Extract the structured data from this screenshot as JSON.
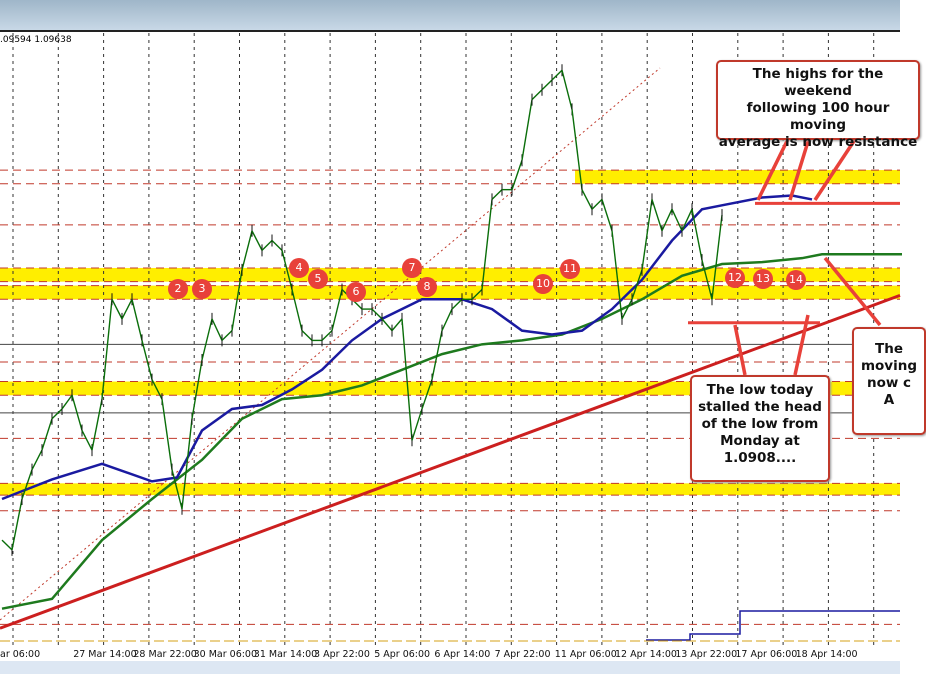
{
  "header": {
    "ohlc_text": ".09594 1.09638"
  },
  "chart_data": {
    "type": "line",
    "title": "",
    "ylim": [
      1.0746,
      1.1056
    ],
    "grid": true,
    "x_tick_labels": [
      "ar 06:00",
      "27 Mar 14:00",
      "28 Mar 22:00",
      "30 Mar 06:00",
      "31 Mar 14:00",
      "3 Apr 22:00",
      "5 Apr 06:00",
      "6 Apr 14:00",
      "7 Apr 22:00",
      "11 Apr 06:00",
      "12 Apr 14:00",
      "13 Apr 22:00",
      "17 Apr 06:00",
      "18 Apr 14:00"
    ],
    "price": [
      1.0797,
      1.0792,
      1.0818,
      1.0833,
      1.0843,
      1.0859,
      1.0864,
      1.0871,
      1.0853,
      1.0843,
      1.0869,
      1.092,
      1.091,
      1.092,
      1.0899,
      1.0879,
      1.0869,
      1.0833,
      1.0813,
      1.0859,
      1.0889,
      1.091,
      1.0899,
      1.0904,
      1.0935,
      1.0955,
      1.0945,
      1.095,
      1.0945,
      1.0925,
      1.0904,
      1.0899,
      1.0899,
      1.0904,
      1.0925,
      1.092,
      1.0915,
      1.0915,
      1.091,
      1.0904,
      1.091,
      1.0848,
      1.0864,
      1.0879,
      1.0904,
      1.0915,
      1.092,
      1.092,
      1.0925,
      1.0971,
      1.0976,
      1.0976,
      1.0991,
      1.1022,
      1.1027,
      1.1032,
      1.1037,
      1.1017,
      1.0976,
      1.0966,
      1.0971,
      1.0955,
      1.091,
      1.092,
      1.0935,
      1.0971,
      1.0955,
      1.0966,
      1.0955,
      1.0966,
      1.094,
      1.092,
      1.0963
    ],
    "ma100": {
      "color": "#1a1aa0",
      "index": [
        0,
        5,
        10,
        15,
        17.5,
        20,
        23,
        26,
        29,
        32,
        35,
        38,
        42,
        46,
        49,
        52,
        55,
        58,
        61,
        64,
        67,
        70,
        72,
        76,
        79,
        81
      ],
      "values": [
        1.0818,
        1.0828,
        1.0836,
        1.0827,
        1.0829,
        1.0853,
        1.0864,
        1.0866,
        1.0874,
        1.0884,
        1.0899,
        1.091,
        1.092,
        1.092,
        1.0915,
        1.0904,
        1.0902,
        1.0904,
        1.0915,
        1.093,
        1.095,
        1.0966,
        1.0968,
        1.0972,
        1.0973,
        1.0971
      ]
    },
    "ma200": {
      "color": "#1e7a1e",
      "index": [
        0,
        5,
        10,
        15,
        20,
        24,
        28,
        32,
        36,
        40,
        44,
        48,
        52,
        56,
        60,
        64,
        68,
        72,
        76,
        80,
        82,
        90
      ],
      "values": [
        1.0762,
        1.0767,
        1.0797,
        1.0818,
        1.0838,
        1.0859,
        1.0869,
        1.0871,
        1.0876,
        1.0884,
        1.0892,
        1.0897,
        1.0899,
        1.0902,
        1.091,
        1.092,
        1.0932,
        1.0938,
        1.0939,
        1.0941,
        1.0943,
        1.0943
      ]
    },
    "zones": [
      [
        1.0979,
        1.0986
      ],
      [
        1.0929,
        1.0936
      ],
      [
        1.092,
        1.0927
      ],
      [
        1.0871,
        1.0878
      ],
      [
        1.082,
        1.0826
      ]
    ],
    "levels": [
      1.0958,
      1.0888,
      1.0849,
      1.0812,
      1.0754
    ],
    "solid_levels": [
      1.0897,
      1.0862
    ],
    "trendline": [
      1.0752,
      1.0922
    ],
    "resistance_level": 1.0969,
    "support_level": 1.0908,
    "markers": [
      "2",
      "3",
      "4",
      "5",
      "6",
      "7",
      "8",
      "10",
      "11",
      "12",
      "13",
      "14"
    ],
    "annotations": {
      "top": "The highs for the weekend\nfollowing 100 hour moving\naverage is now resistance",
      "bottom": "The low today\nstalled the head\nof the low from\nMonday at\n1.0908....",
      "right": "The\nmoving\nnow c\nA"
    },
    "colors": {
      "zone": "#ffee00",
      "level": "#c0392b",
      "trend": "#cc1f1f",
      "price": "#0a6e0a",
      "annotation_border": "#c0392b"
    }
  }
}
